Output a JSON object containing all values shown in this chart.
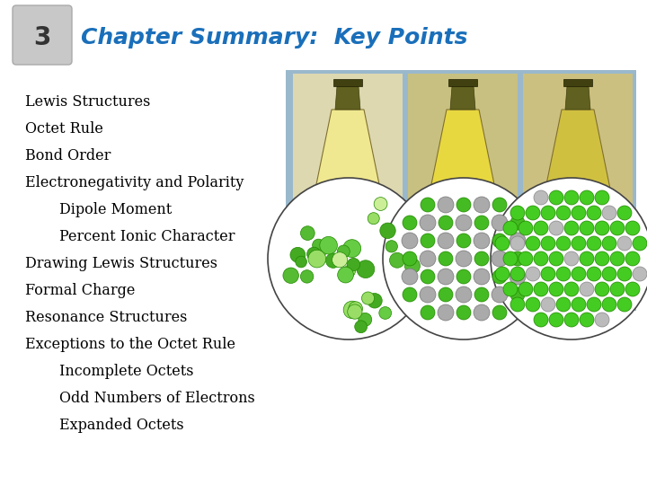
{
  "background_color": "#ffffff",
  "title_number": "3",
  "title_number_bg": "#c8c8c8",
  "title_text": "Chapter Summary:  Key Points",
  "title_color": "#1a6fba",
  "title_fontsize": 18,
  "number_fontsize": 20,
  "bullet_lines": [
    {
      "text": "Lewis Structures",
      "indent": 0
    },
    {
      "text": "Octet Rule",
      "indent": 0
    },
    {
      "text": "Bond Order",
      "indent": 0
    },
    {
      "text": "Electronegativity and Polarity",
      "indent": 0
    },
    {
      "text": "Dipole Moment",
      "indent": 1
    },
    {
      "text": "Percent Ionic Character",
      "indent": 1
    },
    {
      "text": "Drawing Lewis Structures",
      "indent": 0
    },
    {
      "text": "Formal Charge",
      "indent": 0
    },
    {
      "text": "Resonance Structures",
      "indent": 0
    },
    {
      "text": "Exceptions to the Octet Rule",
      "indent": 0
    },
    {
      "text": "Incomplete Octets",
      "indent": 1
    },
    {
      "text": "Odd Numbers of Electrons",
      "indent": 1
    },
    {
      "text": "Expanded Octets",
      "indent": 1
    }
  ],
  "text_fontsize": 11.5,
  "text_color": "#000000",
  "image_bg_color": "#9ab8cc"
}
